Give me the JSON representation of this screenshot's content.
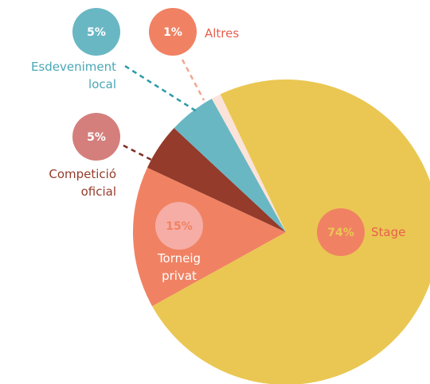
{
  "chart_data": {
    "type": "pie",
    "categories": [
      "Stage",
      "Torneig privat",
      "Competició oficial",
      "Esdeveniment local",
      "Altres"
    ],
    "values": [
      74,
      15,
      5,
      5,
      1
    ],
    "value_labels": [
      "74%",
      "15%",
      "5%",
      "5%",
      "1%"
    ],
    "colors": [
      "#eac752",
      "#f08263",
      "#943b2b",
      "#6ab7c4",
      "#fbe3da"
    ]
  }
}
